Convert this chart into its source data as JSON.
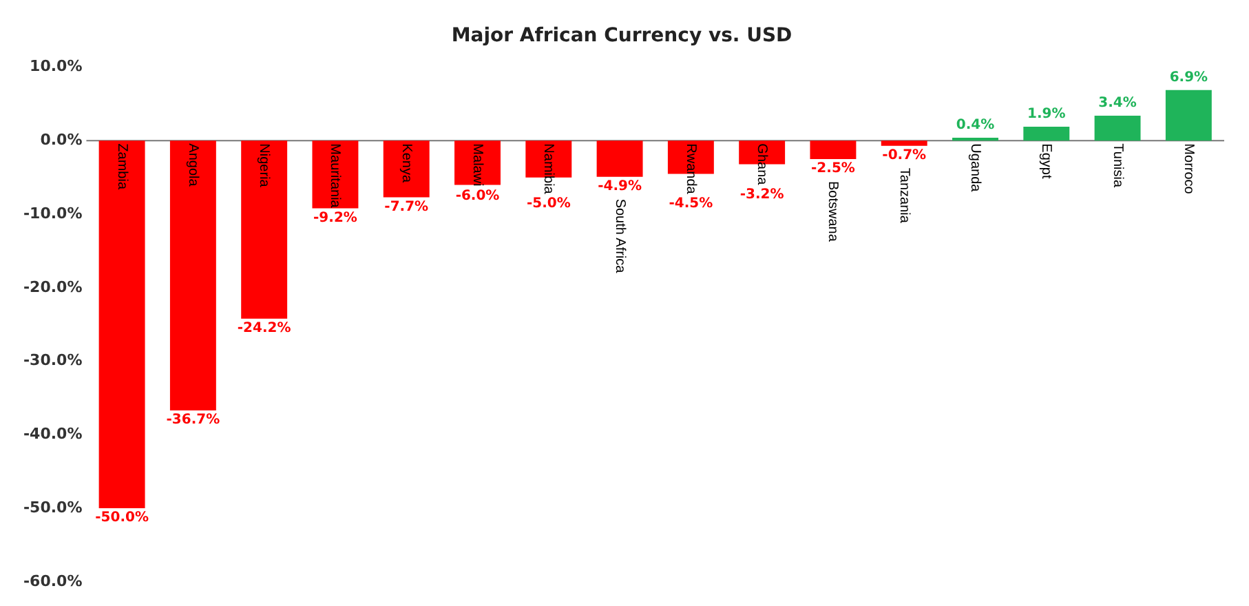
{
  "chart_data": {
    "type": "bar",
    "title": "Major African Currency vs. USD",
    "categories": [
      "Zambia",
      "Angola",
      "Nigeria",
      "Mauritania",
      "Kenya",
      "Malawi",
      "Namibia",
      "South Africa",
      "Rwanda",
      "Ghana",
      "Botswana",
      "Tanzania",
      "Uganda",
      "Egypt",
      "Tunisia",
      "Morroco"
    ],
    "values": [
      -50.0,
      -36.7,
      -24.2,
      -9.2,
      -7.7,
      -6.0,
      -5.0,
      -4.9,
      -4.5,
      -3.2,
      -2.5,
      -0.7,
      0.4,
      1.9,
      3.4,
      6.9
    ],
    "colors": [
      "#ff0000",
      "#ff0000",
      "#ff0000",
      "#ff0000",
      "#ff0000",
      "#ff0000",
      "#ff0000",
      "#ff0000",
      "#ff0000",
      "#ff0000",
      "#ff0000",
      "#ff0000",
      "#1fb45a",
      "#1fb45a",
      "#1fb45a",
      "#1fb45a"
    ],
    "value_labels": [
      "-50.0%",
      "-36.7%",
      "-24.2%",
      "-9.2%",
      "-7.7%",
      "-6.0%",
      "-5.0%",
      "-4.9%",
      "-4.5%",
      "-3.2%",
      "-2.5%",
      "-0.7%",
      "0.4%",
      "1.9%",
      "3.4%",
      "6.9%"
    ],
    "ylim": [
      -60,
      10
    ],
    "yticks": [
      {
        "value": -60,
        "label": "-60.0%"
      },
      {
        "value": -50,
        "label": "-50.0%"
      },
      {
        "value": -40,
        "label": "-40.0%"
      },
      {
        "value": -30,
        "label": "-30.0%"
      },
      {
        "value": -20,
        "label": "-20.0%"
      },
      {
        "value": -10,
        "label": "-10.0%"
      },
      {
        "value": 0,
        "label": "0.0%"
      },
      {
        "value": 10,
        "label": "10.0%"
      }
    ],
    "grid": false
  }
}
